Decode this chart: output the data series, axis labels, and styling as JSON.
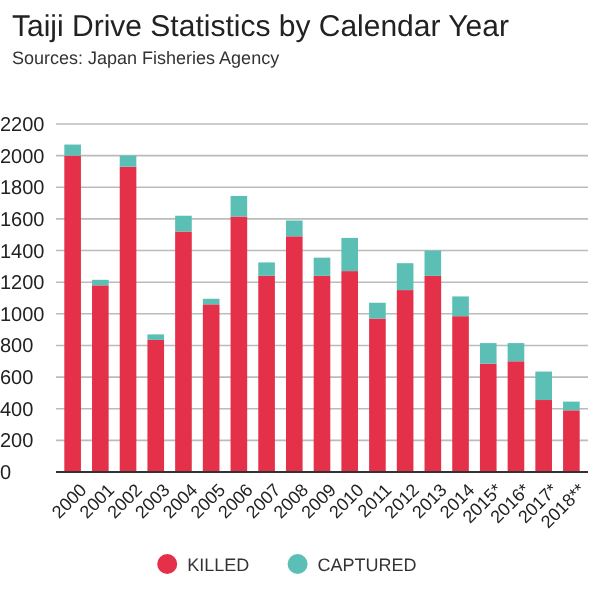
{
  "chart_data": {
    "type": "bar",
    "title": "Taiji Drive Statistics by Calendar Year",
    "subtitle": "Sources: Japan Fisheries Agency",
    "categories": [
      "2000",
      "2001",
      "2002",
      "2003",
      "2004",
      "2005",
      "2006",
      "2007",
      "2008",
      "2009",
      "2010",
      "2011",
      "2012",
      "2013",
      "2014",
      "2015*",
      "2016*",
      "2017*",
      "2018**"
    ],
    "series": [
      {
        "name": "KILLED",
        "color": "#e5304a",
        "values": [
          2000,
          1180,
          1930,
          835,
          1520,
          1060,
          1615,
          1240,
          1490,
          1240,
          1270,
          970,
          1150,
          1240,
          985,
          685,
          700,
          455,
          390
        ]
      },
      {
        "name": "CAPTURED",
        "color": "#5bbfb5",
        "values": [
          70,
          35,
          70,
          35,
          100,
          35,
          130,
          85,
          100,
          115,
          210,
          100,
          170,
          160,
          125,
          130,
          115,
          180,
          55
        ]
      }
    ],
    "stacked": true,
    "ylim": [
      0,
      2200
    ],
    "yticks": [
      0,
      200,
      400,
      600,
      800,
      1000,
      1200,
      1400,
      1600,
      1800,
      2000,
      2200
    ],
    "grid": "y",
    "legend": "bottom"
  }
}
